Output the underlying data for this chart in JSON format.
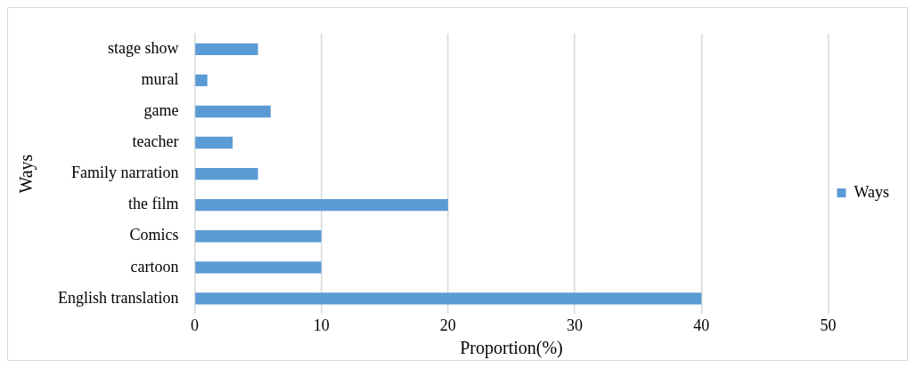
{
  "chart_data": {
    "type": "bar",
    "orientation": "horizontal",
    "xlabel": "Proportion(%)",
    "ylabel": "Ways",
    "categories": [
      "stage show",
      "mural",
      "game",
      "teacher",
      "Family narration",
      "the film",
      "Comics",
      "cartoon",
      "English translation"
    ],
    "series": [
      {
        "name": "Ways",
        "color": "#5b9bd5",
        "values": [
          5,
          1,
          6,
          3,
          5,
          20,
          10,
          10,
          40
        ]
      }
    ],
    "xlim": [
      0,
      50
    ],
    "xticks": [
      0,
      10,
      20,
      30,
      40,
      50
    ],
    "grid": "x",
    "legend": "right"
  }
}
